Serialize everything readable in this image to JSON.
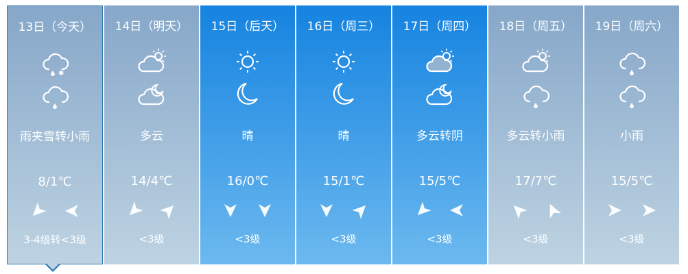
{
  "days": [
    {
      "date": "13日（今天）",
      "icon_day": "rain-snow",
      "icon_night": "rain",
      "desc": "雨夹雪转小雨",
      "temp": "8/1℃",
      "wind_dirs_deg": [
        135,
        180
      ],
      "wind": "3-4级转<3级",
      "theme": "gray",
      "selected": true
    },
    {
      "date": "14日（明天）",
      "icon_day": "partly-cloudy-day",
      "icon_night": "partly-cloudy-night",
      "desc": "多云",
      "temp": "14/4℃",
      "wind_dirs_deg": [
        135,
        -45
      ],
      "wind": "<3级",
      "theme": "gray",
      "selected": false
    },
    {
      "date": "15日（后天）",
      "icon_day": "sunny",
      "icon_night": "moon",
      "desc": "晴",
      "temp": "16/0℃",
      "wind_dirs_deg": [
        90,
        90
      ],
      "wind": "<3级",
      "theme": "blue",
      "selected": false
    },
    {
      "date": "16日（周三）",
      "icon_day": "sunny",
      "icon_night": "moon",
      "desc": "晴",
      "temp": "15/1℃",
      "wind_dirs_deg": [
        90,
        -45
      ],
      "wind": "<3级",
      "theme": "blue",
      "selected": false
    },
    {
      "date": "17日（周四）",
      "icon_day": "partly-cloudy-day",
      "icon_night": "partly-cloudy-night",
      "desc": "多云转阴",
      "temp": "15/5℃",
      "wind_dirs_deg": [
        135,
        180
      ],
      "wind": "<3级",
      "theme": "blue",
      "selected": false
    },
    {
      "date": "18日（周五）",
      "icon_day": "partly-cloudy-day",
      "icon_night": "rain",
      "desc": "多云转小雨",
      "temp": "17/7℃",
      "wind_dirs_deg": [
        -135,
        -115
      ],
      "wind": "<3级",
      "theme": "gray",
      "selected": false
    },
    {
      "date": "19日（周六）",
      "icon_day": "rain",
      "icon_night": "rain",
      "desc": "小雨",
      "temp": "15/5℃",
      "wind_dirs_deg": [
        0,
        0
      ],
      "wind": "<3级",
      "theme": "gray",
      "selected": false
    }
  ]
}
